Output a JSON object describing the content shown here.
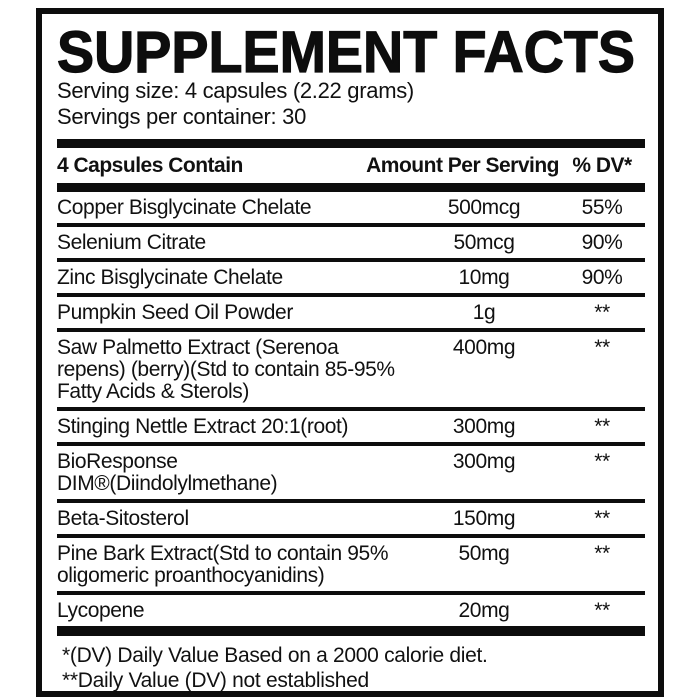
{
  "panel": {
    "title": "SUPPLEMENT FACTS",
    "serving_size": "Serving size: 4 capsules (2.22 grams)",
    "servings_per_container": "Servings per container: 30",
    "table": {
      "headers": {
        "ingredient": "4 Capsules Contain",
        "amount": "Amount Per Serving",
        "daily_value": "% DV*"
      },
      "rows": [
        {
          "ingredient": "Copper Bisglycinate Chelate",
          "amount": "500mcg",
          "daily_value": "55%"
        },
        {
          "ingredient": "Selenium Citrate",
          "amount": "50mcg",
          "daily_value": "90%"
        },
        {
          "ingredient": "Zinc Bisglycinate Chelate",
          "amount": "10mg",
          "daily_value": "90%"
        },
        {
          "ingredient": "Pumpkin Seed Oil Powder",
          "amount": "1g",
          "daily_value": "**"
        },
        {
          "ingredient": "Saw Palmetto Extract (Serenoa repens) (berry)(Std to contain 85-95% Fatty Acids & Sterols)",
          "amount": "400mg",
          "daily_value": "**"
        },
        {
          "ingredient": "Stinging Nettle Extract 20:1(root)",
          "amount": "300mg",
          "daily_value": "**"
        },
        {
          "ingredient": "BioResponse DIM®(Diindolylmethane)",
          "amount": "300mg",
          "daily_value": "**"
        },
        {
          "ingredient": "Beta-Sitosterol",
          "amount": "150mg",
          "daily_value": "**"
        },
        {
          "ingredient": "Pine Bark Extract(Std to contain 95% oligomeric proanthocyanidins)",
          "amount": "50mg",
          "daily_value": "**"
        },
        {
          "ingredient": "Lycopene",
          "amount": "20mg",
          "daily_value": "**"
        }
      ]
    },
    "footnotes": [
      "*(DV) Daily Value Based on a 2000 calorie diet.",
      "**Daily Value (DV) not established"
    ],
    "colors": {
      "ink": "#0d0d0d",
      "background": "#ffffff"
    }
  }
}
